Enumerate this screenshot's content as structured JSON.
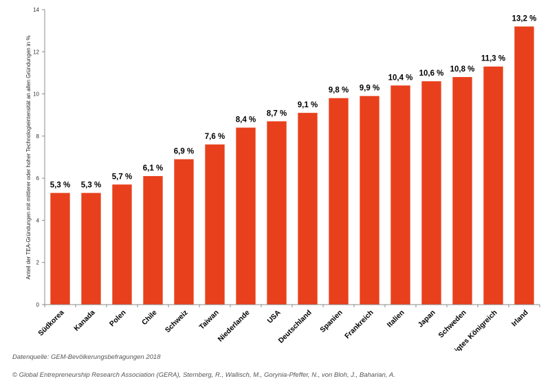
{
  "chart_data": {
    "type": "bar",
    "categories": [
      "Südkorea",
      "Kanada",
      "Polen",
      "Chile",
      "Schweiz",
      "Taiwan",
      "Niederlande",
      "USA",
      "Deutschland",
      "Spanien",
      "Frankreich",
      "Italien",
      "Japan",
      "Schweden",
      "Vereinigtes Königreich",
      "Irland"
    ],
    "values": [
      5.3,
      5.3,
      5.7,
      6.1,
      6.9,
      7.6,
      8.4,
      8.7,
      9.1,
      9.8,
      9.9,
      10.4,
      10.6,
      10.8,
      11.3,
      13.2
    ],
    "data_labels": [
      "5,3 %",
      "5,3 %",
      "5,7 %",
      "6,1 %",
      "6,9 %",
      "7,6 %",
      "8,4 %",
      "8,7 %",
      "9,1 %",
      "9,8 %",
      "9,9 %",
      "10,4 %",
      "10,6 %",
      "10,8 %",
      "11,3 %",
      "13,2 %"
    ],
    "ylabel": "Anteil der TEA-Gründungen  mit mittlerer oder hoher Technologieintensität an allen Gründungen in %",
    "ylim": [
      0,
      14
    ],
    "yticks": [
      "0",
      "2",
      "4",
      "6",
      "8",
      "10",
      "12",
      "14"
    ],
    "bar_color": "#e8401c",
    "grid": false,
    "legend": "none"
  },
  "footer": {
    "source": "Datenquelle: GEM-Bevölkerungsbefragungen  2018",
    "copyright": "© Global  Entrepreneurship  Research Association  (GERA), Sternberg, R., Wallisch,  M., Gorynia-Pfeffer,  N., von Bloh, J., Baharian, A."
  }
}
